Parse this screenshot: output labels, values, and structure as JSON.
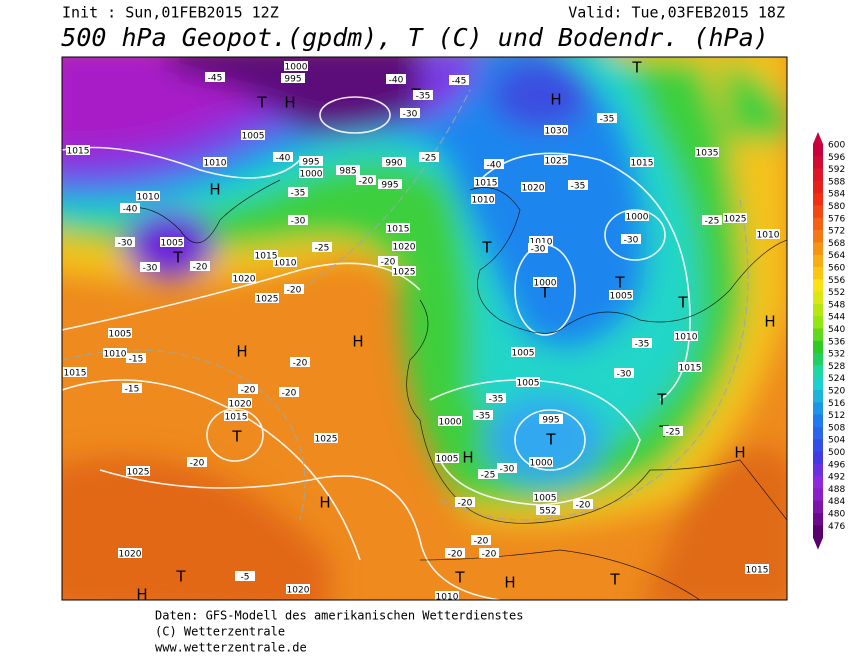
{
  "header": {
    "init": "Init : Sun,01FEB2015 12Z",
    "valid": "Valid: Tue,03FEB2015 18Z",
    "title": "500 hPa Geopot.(gpdm), T (C) und Bodendr. (hPa)"
  },
  "colorbar": {
    "ticks": [
      600,
      596,
      592,
      588,
      584,
      580,
      576,
      572,
      568,
      564,
      560,
      556,
      552,
      548,
      544,
      540,
      536,
      532,
      528,
      524,
      520,
      516,
      512,
      508,
      504,
      500,
      496,
      492,
      488,
      484,
      480,
      476
    ]
  },
  "centers": [
    "H",
    "T",
    "T",
    "H",
    "T",
    "H",
    "T",
    "T",
    "T",
    "T",
    "T",
    "H",
    "H",
    "H",
    "T",
    "H",
    "H",
    "T",
    "T",
    "H",
    "T",
    "H",
    "T",
    "T",
    "T",
    "H"
  ],
  "pressure_labels": [
    "1000",
    "995",
    "1005",
    "1010",
    "1015",
    "1010",
    "1005",
    "1020",
    "1025",
    "1005",
    "1010",
    "1015",
    "1020",
    "1015",
    "1025",
    "1025",
    "1020",
    "1020",
    "1010",
    "1015",
    "1035",
    "1025",
    "1010",
    "1015",
    "1000",
    "1005",
    "1010",
    "1015",
    "1000",
    "1005",
    "1005",
    "1000",
    "1005",
    "995",
    "1000",
    "1005",
    "552",
    "1025",
    "1020",
    "1015",
    "1010",
    "1010",
    "1030",
    "990",
    "995",
    "985",
    "995",
    "1000",
    "1010",
    "1015",
    "1020",
    "1025",
    "1015"
  ],
  "temperature_labels": [
    "-45",
    "-40",
    "-45",
    "-35",
    "-30",
    "-35",
    "-40",
    "-35",
    "-30",
    "-25",
    "-20",
    "-20",
    "-25",
    "-40",
    "-35",
    "-25",
    "-30",
    "-30",
    "-20",
    "-35",
    "-30",
    "-35",
    "-35",
    "-30",
    "-25",
    "-25",
    "-20",
    "-20",
    "-20",
    "-20",
    "-15",
    "-15",
    "-20",
    "-20",
    "-20",
    "-20",
    "-20",
    "-5",
    "-40",
    "-30",
    "-30",
    "-20"
  ],
  "footer": [
    "Daten: GFS-Modell des amerikanischen Wetterdienstes",
    "(C) Wetterzentrale",
    "www.wetterzentrale.de"
  ]
}
